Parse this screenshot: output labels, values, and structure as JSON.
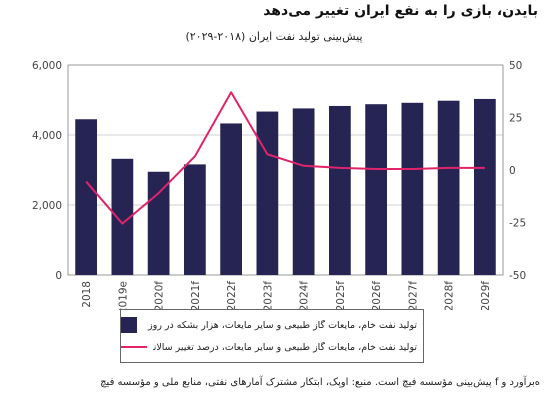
{
  "title": "بایدن، بازی را به نفع ایران تغییر می‌دهد",
  "subtitle": "پیش‌بینی تولید نفت ایران (۲۰۱۸-۲۰۲۹)",
  "source": "ه‌برآورد و f پیش‌بینی مؤسسه فیچ است. منبع: اوپک، ابتکار مشترک آمارهای نفتی، منابع ملی و مؤسسه فیچ",
  "chart_data": {
    "type": "bar+line",
    "categories": [
      "2018",
      "2019e",
      "2020f",
      "2021f",
      "2022f",
      "2023f",
      "2024f",
      "2025f",
      "2026f",
      "2027f",
      "2028f",
      "2029f"
    ],
    "series": [
      {
        "name": "تولید نفت خام، مایعات گاز طبیعی و سایر مایعات، هزار بشکه در روز (سمت چپ)",
        "type": "bar",
        "axis": "left",
        "color": "#262452",
        "values": [
          4450,
          3320,
          2950,
          3160,
          4330,
          4670,
          4760,
          4830,
          4880,
          4920,
          4980,
          5030
        ]
      },
      {
        "name": "تولید نفت خام، مایعات گاز طبیعی و سایر مایعات، درصد تغییر سالانه (سمت راست)",
        "type": "line",
        "axis": "right",
        "color": "#e0246a",
        "values": [
          -5.5,
          -25.5,
          -11,
          6.5,
          37,
          7.5,
          2,
          1,
          0.5,
          0.5,
          1,
          1
        ]
      }
    ],
    "yleft": {
      "min": 0,
      "max": 6000,
      "ticks": [
        0,
        2000,
        4000,
        6000
      ],
      "tick_labels": [
        "0",
        "2,000",
        "4,000",
        "6,000"
      ]
    },
    "yright": {
      "min": -50,
      "max": 50,
      "ticks": [
        -50,
        -25,
        0,
        25,
        50
      ],
      "tick_labels": [
        "-50",
        "-25",
        "0",
        "25",
        "50"
      ]
    },
    "grid": true,
    "legend_position": "bottom"
  }
}
